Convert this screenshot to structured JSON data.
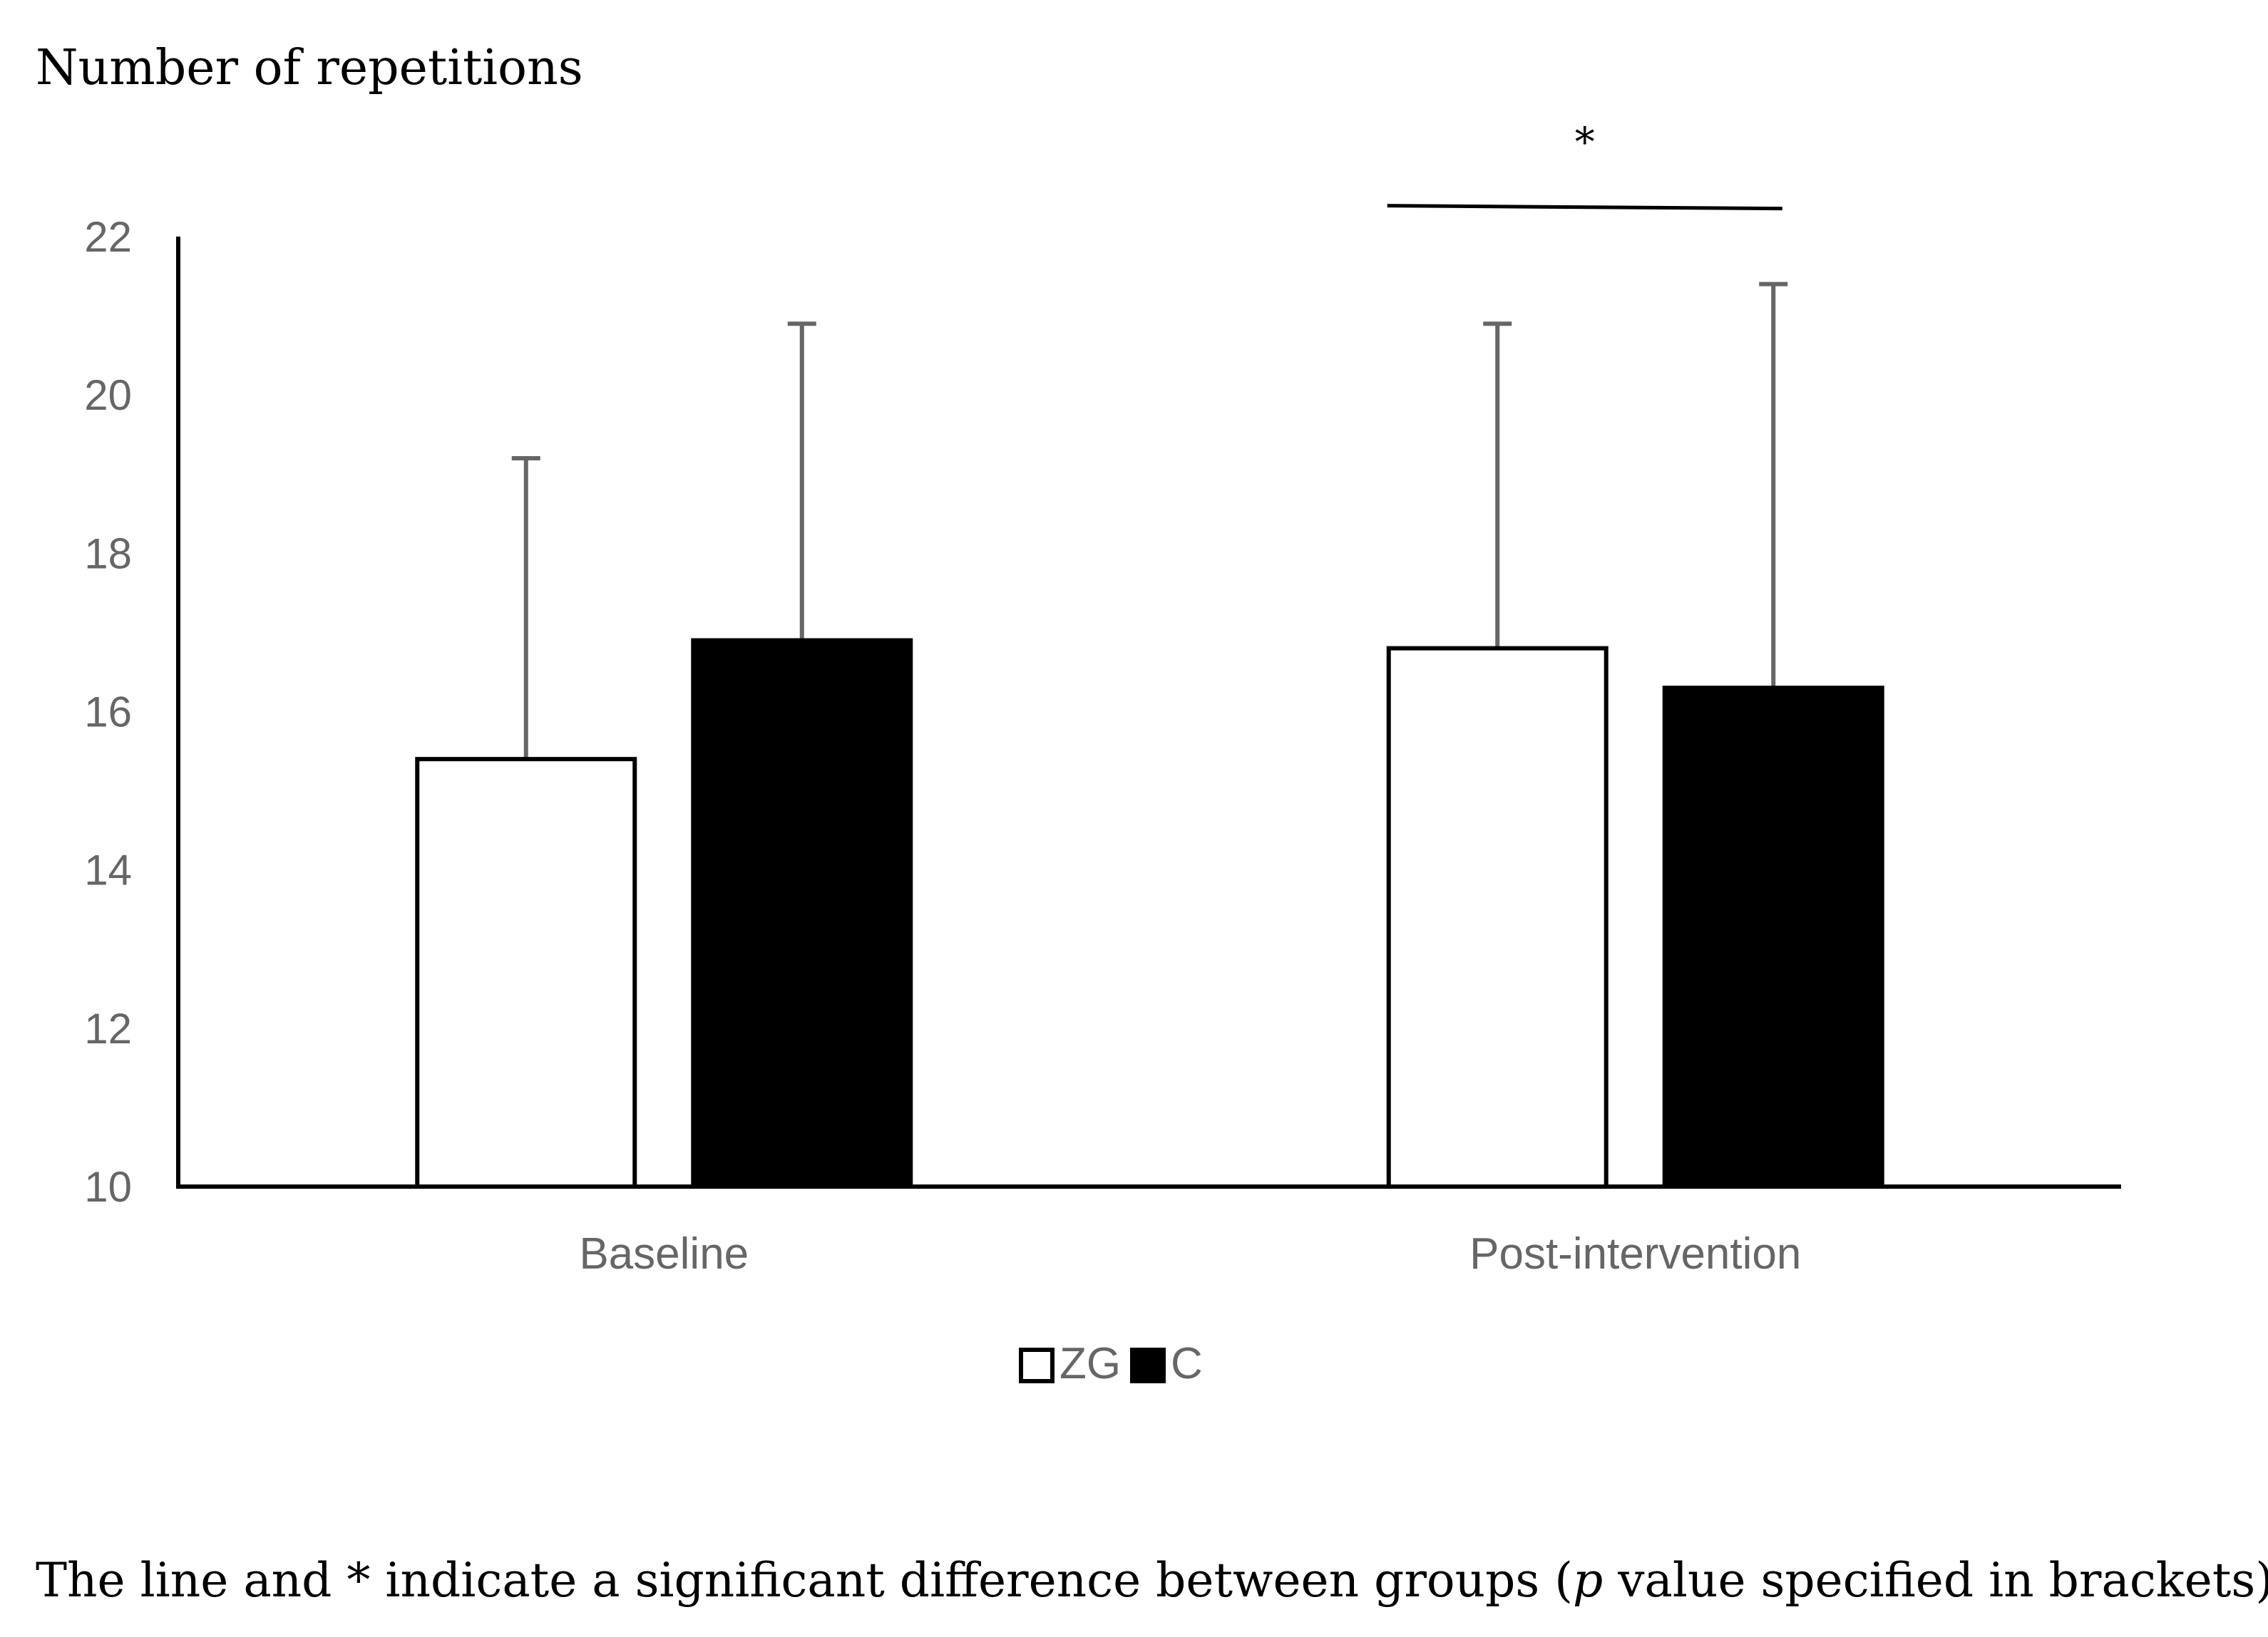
{
  "chart_data": {
    "type": "bar",
    "title": "",
    "ylabel": "Number of repetitions",
    "xlabel": "",
    "ylim": [
      10,
      22
    ],
    "yticks": [
      10,
      12,
      14,
      16,
      18,
      20,
      22
    ],
    "categories": [
      "Baseline",
      "Post-intervention"
    ],
    "series": [
      {
        "name": "ZG",
        "values": [
          15.4,
          16.8
        ],
        "errors": [
          3.8,
          4.1
        ],
        "fill": "#ffffff",
        "stroke": "#000000"
      },
      {
        "name": "C",
        "values": [
          16.9,
          16.3
        ],
        "errors": [
          4.0,
          5.1
        ],
        "fill": "#000000",
        "stroke": "#000000"
      }
    ],
    "legend": {
      "position": "bottom-center",
      "entries": [
        "ZG",
        "C"
      ]
    },
    "significance": {
      "category": "Post-intervention",
      "marker": "*"
    },
    "grid": false
  },
  "caption_parts": {
    "before": "The line and * indicate a significant difference between groups (",
    "italic": "p",
    "after": " value specified in brackets)."
  },
  "colors": {
    "axis": "#000000",
    "tick_text": "#666666",
    "error_bar": "#666666"
  }
}
